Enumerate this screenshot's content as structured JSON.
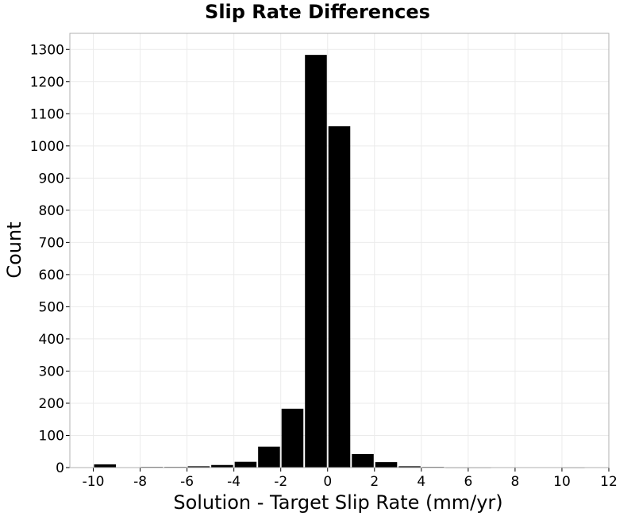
{
  "chart_data": {
    "type": "bar",
    "title": "Slip Rate Differences",
    "xlabel": "Solution - Target Slip Rate (mm/yr)",
    "ylabel": "Count",
    "xlim": [
      -11,
      12
    ],
    "ylim": [
      0,
      1350
    ],
    "x_ticks": [
      -10,
      -8,
      -6,
      -4,
      -2,
      0,
      2,
      4,
      6,
      8,
      10,
      12
    ],
    "y_ticks": [
      0,
      100,
      200,
      300,
      400,
      500,
      600,
      700,
      800,
      900,
      1000,
      1100,
      1200,
      1300
    ],
    "bin_width": 1,
    "grid": true,
    "bar_color": "#000000",
    "background_color": "#ffffff",
    "bins": [
      {
        "x": -10,
        "count": 10
      },
      {
        "x": -9,
        "count": 0
      },
      {
        "x": -8,
        "count": 2
      },
      {
        "x": -7,
        "count": 2
      },
      {
        "x": -6,
        "count": 4
      },
      {
        "x": -5,
        "count": 8
      },
      {
        "x": -4,
        "count": 18
      },
      {
        "x": -3,
        "count": 65
      },
      {
        "x": -2,
        "count": 183
      },
      {
        "x": -1,
        "count": 1283
      },
      {
        "x": 0,
        "count": 1061
      },
      {
        "x": 1,
        "count": 42
      },
      {
        "x": 2,
        "count": 17
      },
      {
        "x": 3,
        "count": 4
      },
      {
        "x": 4,
        "count": 2
      },
      {
        "x": 5,
        "count": 1
      },
      {
        "x": 6,
        "count": 1
      },
      {
        "x": 7,
        "count": 0
      },
      {
        "x": 8,
        "count": 0
      },
      {
        "x": 9,
        "count": 0
      },
      {
        "x": 10,
        "count": 1
      }
    ]
  }
}
